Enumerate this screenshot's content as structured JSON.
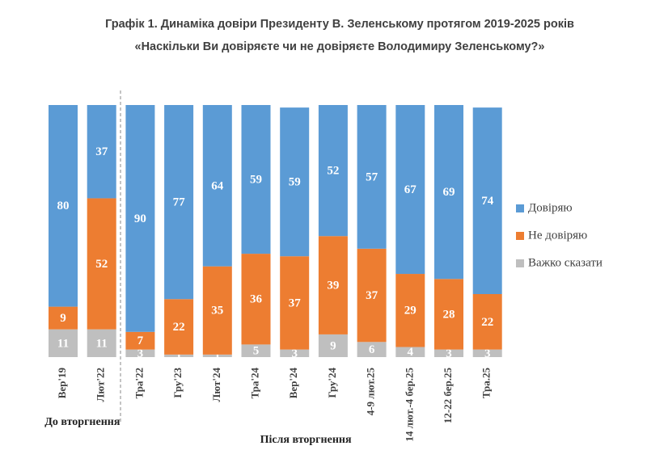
{
  "chart_data": {
    "type": "stacked_bar",
    "title": "Графік 1. Динаміка довіри Президенту В. Зеленському протягом 2019-2025 років",
    "subtitle": "«Наскільки Ви довіряєте чи не довіряєте Володимиру Зеленському?»",
    "categories": [
      "Вер'19",
      "Лют'22",
      "Тра'22",
      "Гру'23",
      "Лют'24",
      "Тра'24",
      "Вер'24",
      "Гру'24",
      "4-9 лют.25",
      "14 лют.-4 бер.25",
      "12-22 бер.25",
      "Тра.25"
    ],
    "series": [
      {
        "name": "Довіряю",
        "color": "#5b9bd5",
        "values": [
          80,
          37,
          90,
          77,
          64,
          59,
          59,
          52,
          57,
          67,
          69,
          74
        ]
      },
      {
        "name": "Не довіряю",
        "color": "#ed7d31",
        "values": [
          9,
          52,
          7,
          22,
          35,
          36,
          37,
          39,
          37,
          29,
          28,
          22
        ]
      },
      {
        "name": "Важко сказати",
        "color": "#bfbfbf",
        "values": [
          11,
          11,
          3,
          1,
          1,
          5,
          3,
          9,
          6,
          4,
          3,
          3
        ]
      }
    ],
    "ylim": [
      0,
      100
    ],
    "legend": "right",
    "groups": [
      {
        "label": "До вторгнення",
        "from": 0,
        "to": 1
      },
      {
        "label": "Після вторгнення",
        "from": 2,
        "to": 11
      }
    ]
  }
}
